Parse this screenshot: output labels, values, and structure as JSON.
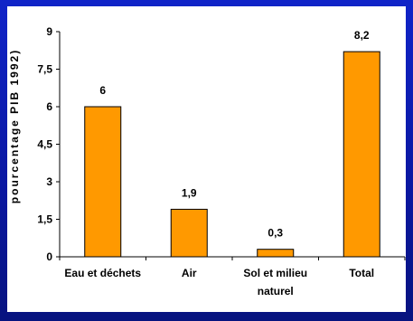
{
  "chart_data": {
    "type": "bar",
    "categories": [
      "Eau et déchets",
      "Air",
      "Sol et milieu naturel",
      "Total"
    ],
    "category_lines": [
      [
        "Eau et déchets"
      ],
      [
        "Air"
      ],
      [
        "Sol et milieu",
        "naturel"
      ],
      [
        "Total"
      ]
    ],
    "values": [
      6,
      1.9,
      0.3,
      8.2
    ],
    "data_labels": [
      "6",
      "1,9",
      "0,3",
      "8,2"
    ],
    "ylabel": "pourcentage PIB 1992)",
    "ylim": [
      0,
      9
    ],
    "yticks": [
      0,
      1.5,
      3,
      4.5,
      6,
      7.5,
      9
    ],
    "ytick_labels": [
      "0",
      "1,5",
      "3",
      "4,5",
      "6",
      "7,5",
      "9"
    ],
    "grid": false,
    "colors": {
      "bar": "#ff9900",
      "bar_stroke": "#000000",
      "background": "#0b1aa8",
      "panel": "#ffffff"
    }
  }
}
